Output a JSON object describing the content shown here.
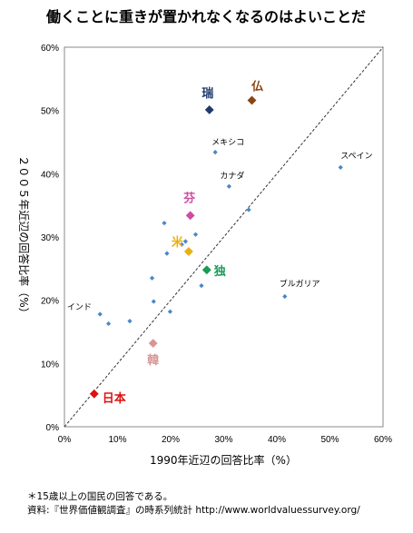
{
  "chart_data": {
    "type": "scatter",
    "title": "働くことに重きが置かれなくなるのはよいことだ",
    "xlabel": "1990年近辺の回答比率（%）",
    "ylabel": "２００５年近辺の回答比率（%）",
    "xlim": [
      0,
      60
    ],
    "ylim": [
      0,
      60
    ],
    "x_ticks": [
      "0%",
      "10%",
      "20%",
      "30%",
      "40%",
      "50%",
      "60%"
    ],
    "y_ticks": [
      "0%",
      "10%",
      "20%",
      "30%",
      "40%",
      "50%",
      "60%"
    ],
    "grid": false,
    "reference_line": "y = x (dashed)",
    "points": [
      {
        "label": "",
        "x": 6.7,
        "y": 17.8
      },
      {
        "label": "",
        "x": 8.3,
        "y": 16.3
      },
      {
        "label": "",
        "x": 12.3,
        "y": 16.7
      },
      {
        "label": "",
        "x": 16.5,
        "y": 23.5
      },
      {
        "label": "",
        "x": 16.8,
        "y": 19.8
      },
      {
        "label": "",
        "x": 18.8,
        "y": 32.2
      },
      {
        "label": "",
        "x": 19.3,
        "y": 27.4
      },
      {
        "label": "",
        "x": 19.9,
        "y": 18.2
      },
      {
        "label": "",
        "x": 22.1,
        "y": 28.8
      },
      {
        "label": "",
        "x": 24.7,
        "y": 30.4
      },
      {
        "label": "",
        "x": 25.8,
        "y": 22.3
      },
      {
        "label": "",
        "x": 34.7,
        "y": 34.3
      },
      {
        "label": "",
        "x": 31.0,
        "y": 38.0
      },
      {
        "label": "",
        "x": 28.4,
        "y": 43.4
      },
      {
        "label": "",
        "x": 52.0,
        "y": 41.0
      },
      {
        "label": "",
        "x": 41.5,
        "y": 20.6
      },
      {
        "label": "",
        "x": 22.8,
        "y": 29.3
      }
    ],
    "text_labels": [
      {
        "text": "インド",
        "x": 6.3,
        "y": 17.8
      },
      {
        "text": "メキシコ",
        "x": 28.4,
        "y": 43.4
      },
      {
        "text": "カナダ",
        "x": 31.0,
        "y": 38.0
      },
      {
        "text": "スペイン",
        "x": 52.0,
        "y": 41.0
      },
      {
        "text": "ブルガリア",
        "x": 41.5,
        "y": 20.6
      }
    ],
    "highlighted": [
      {
        "label": "瑞",
        "x": 27.3,
        "y": 50.1,
        "color": "#1f3b6e"
      },
      {
        "label": "仏",
        "x": 35.3,
        "y": 51.6,
        "color": "#8b4513"
      },
      {
        "label": "芬",
        "x": 23.7,
        "y": 33.4,
        "color": "#d04ca0"
      },
      {
        "label": "米",
        "x": 23.4,
        "y": 27.7,
        "color": "#e8b010"
      },
      {
        "label": "独",
        "x": 26.8,
        "y": 24.8,
        "color": "#1a9a55"
      },
      {
        "label": "韓",
        "x": 16.7,
        "y": 13.2,
        "color": "#d99595"
      },
      {
        "label": "日本",
        "x": 5.6,
        "y": 5.2,
        "color": "#dd1111"
      }
    ],
    "point_color": "#4a86c8"
  },
  "notes": {
    "line1": "＊15歳以上の国民の回答である。",
    "line2": "資料:『世界価値観調査』の時系列統計  http://www.worldvaluessurvey.org/"
  }
}
